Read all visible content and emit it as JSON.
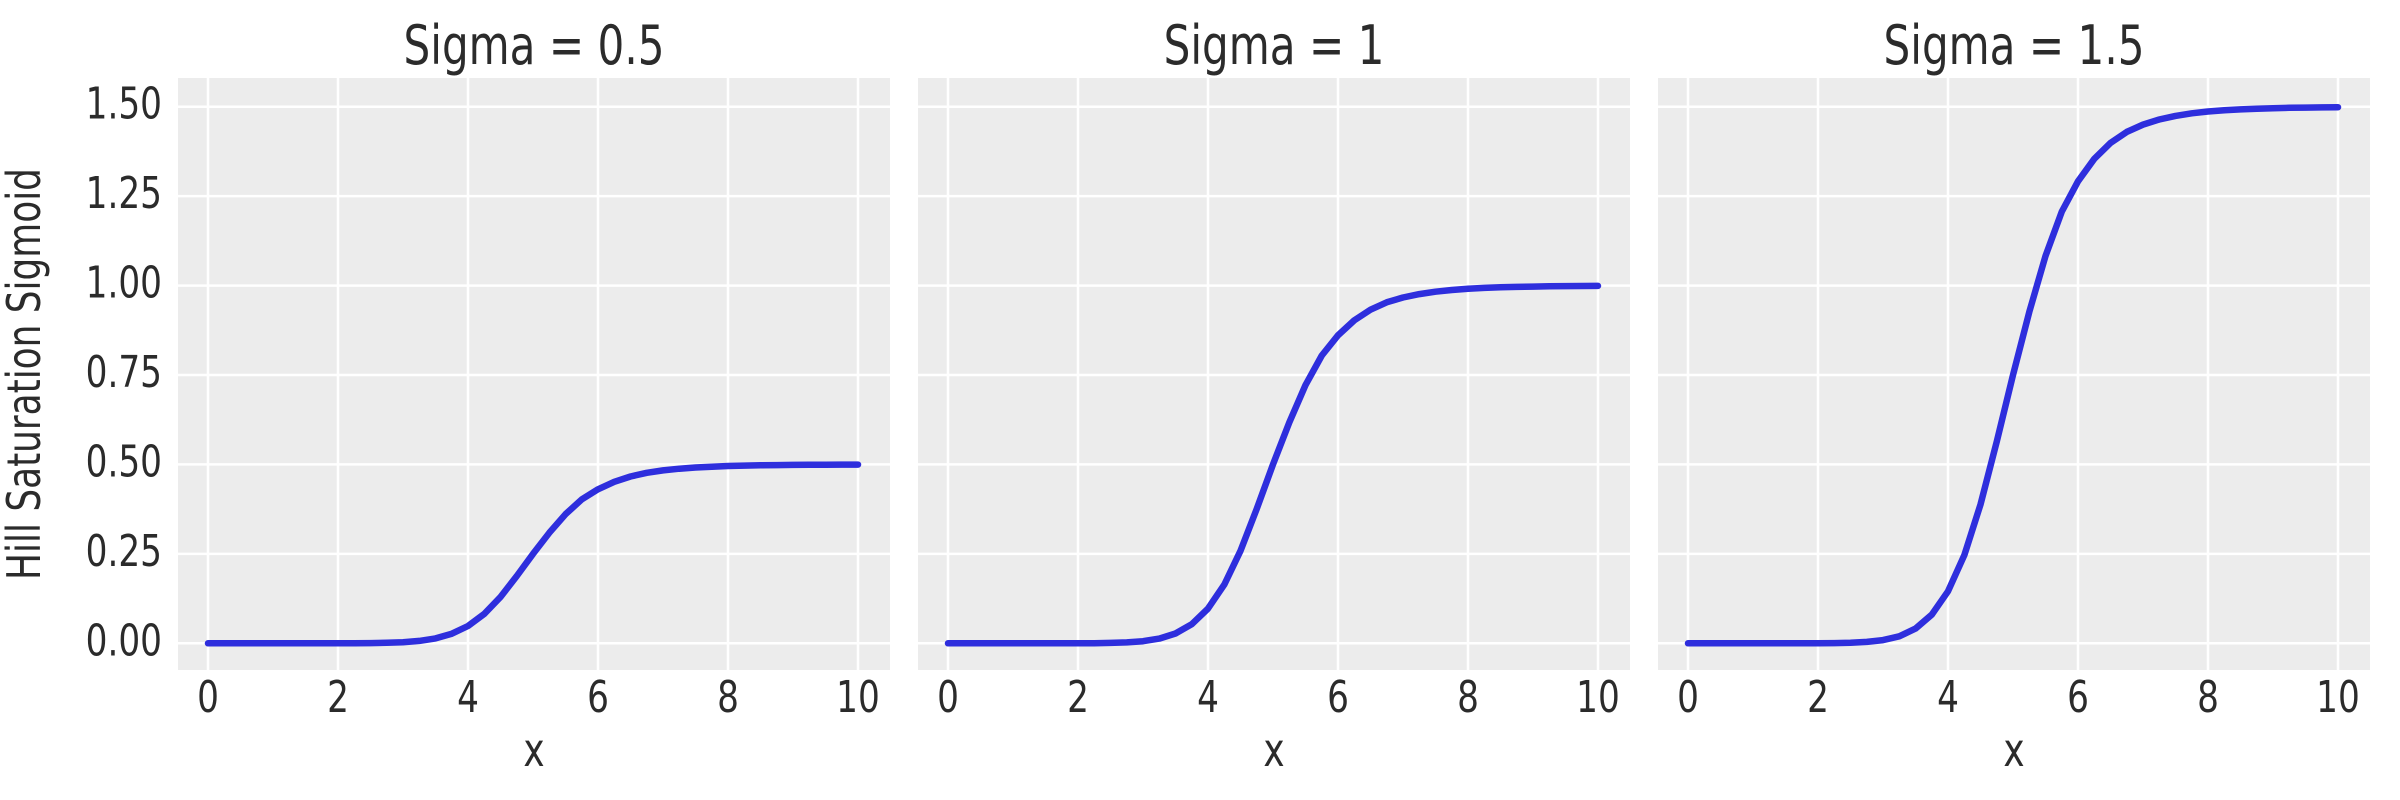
{
  "figure": {
    "kind": "matplotlib-style line figure",
    "background": "#ffffff"
  },
  "style": {
    "axes_background": "#ececec",
    "grid_color": "#ffffff",
    "line_color": "#2e2edd",
    "text_color": "#2b2b2b"
  },
  "chart_data": [
    {
      "type": "line",
      "title": "Sigma = 0.5",
      "xlabel": "x",
      "ylabel": "Hill Saturation Sigmoid",
      "show_ytick_labels": true,
      "grid": true,
      "legend": null,
      "xlim": [
        -0.5,
        10.5
      ],
      "ylim": [
        -0.075,
        1.575
      ],
      "xticks": [
        0,
        2,
        4,
        6,
        8,
        10
      ],
      "yticks": [
        0,
        0.25,
        0.5,
        0.75,
        1.0,
        1.25,
        1.5
      ],
      "xtick_labels": [
        "0",
        "2",
        "4",
        "6",
        "8",
        "10"
      ],
      "ytick_labels": [
        "0.00",
        "0.25",
        "0.50",
        "0.75",
        "1.00",
        "1.25",
        "1.50"
      ],
      "x": [
        0,
        0.25,
        0.5,
        0.75,
        1,
        1.25,
        1.5,
        1.75,
        2,
        2.25,
        2.5,
        2.75,
        3,
        3.25,
        3.5,
        3.75,
        4,
        4.25,
        4.5,
        4.75,
        5,
        5.25,
        5.5,
        5.75,
        6,
        6.25,
        6.5,
        6.75,
        7,
        7.25,
        7.5,
        7.75,
        8,
        8.25,
        8.5,
        8.75,
        9,
        9.25,
        9.5,
        9.75,
        10
      ],
      "series": [
        {
          "name": "sigma = 0.5",
          "sigma": 0.5,
          "saturation": 0.5,
          "values": [
            0,
            0,
            0,
            0,
            0,
            0,
            0,
            0,
            0.0001,
            0.0002,
            0.0005,
            0.0013,
            0.003,
            0.0066,
            0.0137,
            0.0267,
            0.0485,
            0.0821,
            0.1293,
            0.1882,
            0.25,
            0.3088,
            0.3609,
            0.4023,
            0.4305,
            0.4515,
            0.4663,
            0.4766,
            0.4833,
            0.4881,
            0.4915,
            0.4938,
            0.4955,
            0.4967,
            0.4975,
            0.4981,
            0.4986,
            0.4989,
            0.4992,
            0.4994,
            0.4995
          ]
        }
      ]
    },
    {
      "type": "line",
      "title": "Sigma = 1",
      "xlabel": "x",
      "ylabel": null,
      "show_ytick_labels": false,
      "grid": true,
      "legend": null,
      "xlim": [
        -0.5,
        10.5
      ],
      "ylim": [
        -0.075,
        1.575
      ],
      "xticks": [
        0,
        2,
        4,
        6,
        8,
        10
      ],
      "yticks": [
        0,
        0.25,
        0.5,
        0.75,
        1.0,
        1.25,
        1.5
      ],
      "xtick_labels": [
        "0",
        "2",
        "4",
        "6",
        "8",
        "10"
      ],
      "ytick_labels": [
        "0.00",
        "0.25",
        "0.50",
        "0.75",
        "1.00",
        "1.25",
        "1.50"
      ],
      "x": [
        0,
        0.25,
        0.5,
        0.75,
        1,
        1.25,
        1.5,
        1.75,
        2,
        2.25,
        2.5,
        2.75,
        3,
        3.25,
        3.5,
        3.75,
        4,
        4.25,
        4.5,
        4.75,
        5,
        5.25,
        5.5,
        5.75,
        6,
        6.25,
        6.5,
        6.75,
        7,
        7.25,
        7.5,
        7.75,
        8,
        8.25,
        8.5,
        8.75,
        9,
        9.25,
        9.5,
        9.75,
        10
      ],
      "series": [
        {
          "name": "sigma = 1",
          "sigma": 1.0,
          "saturation": 1.0,
          "values": [
            0,
            0,
            0,
            0,
            0,
            0,
            0,
            0.0001,
            0.0001,
            0.0003,
            0.001,
            0.0025,
            0.006,
            0.0131,
            0.0275,
            0.0534,
            0.0969,
            0.1641,
            0.2586,
            0.3763,
            0.5,
            0.6176,
            0.7218,
            0.8046,
            0.861,
            0.903,
            0.9326,
            0.9531,
            0.9666,
            0.9762,
            0.983,
            0.9877,
            0.991,
            0.9934,
            0.9951,
            0.9963,
            0.9972,
            0.9979,
            0.9984,
            0.9987,
            0.999
          ]
        }
      ]
    },
    {
      "type": "line",
      "title": "Sigma = 1.5",
      "xlabel": "x",
      "ylabel": null,
      "show_ytick_labels": false,
      "grid": true,
      "legend": null,
      "xlim": [
        -0.5,
        10.5
      ],
      "ylim": [
        -0.075,
        1.575
      ],
      "xticks": [
        0,
        2,
        4,
        6,
        8,
        10
      ],
      "yticks": [
        0,
        0.25,
        0.5,
        0.75,
        1.0,
        1.25,
        1.5
      ],
      "xtick_labels": [
        "0",
        "2",
        "4",
        "6",
        "8",
        "10"
      ],
      "ytick_labels": [
        "0.00",
        "0.25",
        "0.50",
        "0.75",
        "1.00",
        "1.25",
        "1.50"
      ],
      "x": [
        0,
        0.25,
        0.5,
        0.75,
        1,
        1.25,
        1.5,
        1.75,
        2,
        2.25,
        2.5,
        2.75,
        3,
        3.25,
        3.5,
        3.75,
        4,
        4.25,
        4.5,
        4.75,
        5,
        5.25,
        5.5,
        5.75,
        6,
        6.25,
        6.5,
        6.75,
        7,
        7.25,
        7.5,
        7.75,
        8,
        8.25,
        8.5,
        8.75,
        9,
        9.25,
        9.5,
        9.75,
        10
      ],
      "series": [
        {
          "name": "sigma = 1.5",
          "sigma": 1.5,
          "saturation": 1.5,
          "values": [
            0,
            0,
            0,
            0,
            0,
            0,
            0,
            0.0001,
            0.0002,
            0.0005,
            0.0015,
            0.0038,
            0.009,
            0.0197,
            0.0412,
            0.0801,
            0.1454,
            0.2462,
            0.3879,
            0.5645,
            0.75,
            0.9264,
            1.0827,
            1.2069,
            1.2914,
            1.3545,
            1.3989,
            1.4296,
            1.4499,
            1.4643,
            1.4744,
            1.4815,
            1.4865,
            1.4901,
            1.4926,
            1.4945,
            1.4958,
            1.4968,
            1.4976,
            1.4981,
            1.4985
          ]
        }
      ]
    }
  ]
}
